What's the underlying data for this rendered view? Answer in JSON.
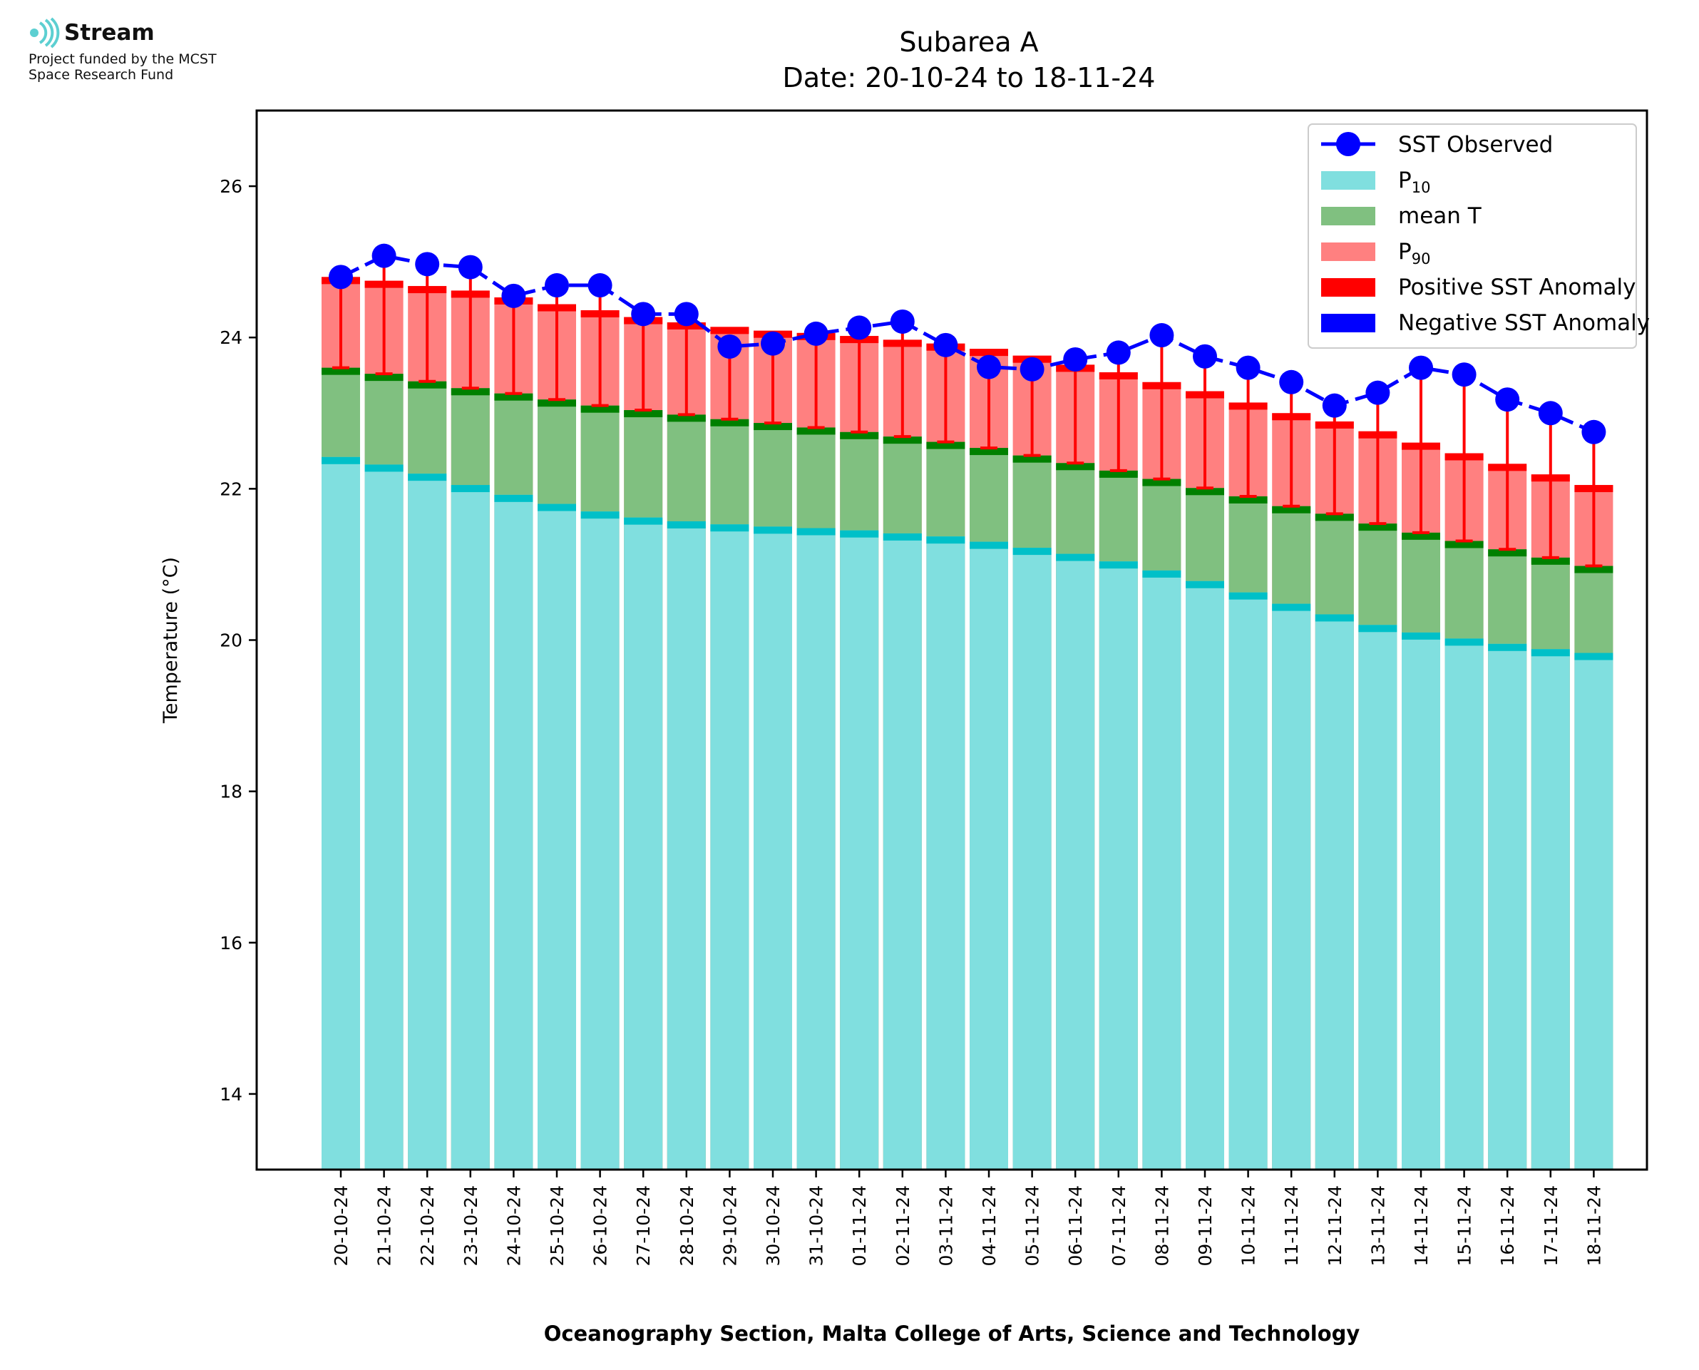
{
  "logo": {
    "brand": "Stream",
    "line1": "Project funded by the MCST",
    "line2": "Space Research Fund"
  },
  "chart_data": {
    "type": "bar",
    "title": "Subarea A",
    "subtitle": "Date: 20-10-24 to 18-11-24",
    "xlabel": "Oceanography Section, Malta College of Arts, Science and Technology",
    "ylabel": "Temperature (°C)",
    "ylim": [
      13,
      27
    ],
    "yticks": [
      14,
      16,
      18,
      20,
      22,
      24,
      26
    ],
    "grid": false,
    "legend_position": "top-right",
    "categories": [
      "20-10-24",
      "21-10-24",
      "22-10-24",
      "23-10-24",
      "24-10-24",
      "25-10-24",
      "26-10-24",
      "27-10-24",
      "28-10-24",
      "29-10-24",
      "30-10-24",
      "31-10-24",
      "01-11-24",
      "02-11-24",
      "03-11-24",
      "04-11-24",
      "05-11-24",
      "06-11-24",
      "07-11-24",
      "08-11-24",
      "09-11-24",
      "10-11-24",
      "11-11-24",
      "12-11-24",
      "13-11-24",
      "14-11-24",
      "15-11-24",
      "16-11-24",
      "17-11-24",
      "18-11-24"
    ],
    "series": [
      {
        "name": "SST Observed",
        "kind": "line",
        "color": "#0000ff",
        "values": [
          24.8,
          25.08,
          24.97,
          24.93,
          24.55,
          24.69,
          24.69,
          24.31,
          24.31,
          23.88,
          23.92,
          24.05,
          24.13,
          24.21,
          23.9,
          23.61,
          23.58,
          23.71,
          23.8,
          24.03,
          23.75,
          23.6,
          23.41,
          23.1,
          23.27,
          23.6,
          23.51,
          23.18,
          23.0,
          22.75
        ]
      },
      {
        "name": "P10",
        "kind": "bar",
        "color": "#80dfdf",
        "edge_color": "#00c0c8",
        "values": [
          22.42,
          22.32,
          22.2,
          22.05,
          21.92,
          21.8,
          21.7,
          21.62,
          21.57,
          21.53,
          21.5,
          21.48,
          21.45,
          21.41,
          21.37,
          21.3,
          21.22,
          21.14,
          21.04,
          20.92,
          20.78,
          20.63,
          20.48,
          20.34,
          20.2,
          20.1,
          20.02,
          19.95,
          19.88,
          19.83
        ]
      },
      {
        "name": "mean T",
        "kind": "bar",
        "color": "#80c080",
        "edge_color": "#008000",
        "values": [
          23.6,
          23.52,
          23.42,
          23.33,
          23.26,
          23.18,
          23.1,
          23.04,
          22.98,
          22.92,
          22.87,
          22.81,
          22.75,
          22.69,
          22.62,
          22.54,
          22.44,
          22.34,
          22.24,
          22.13,
          22.01,
          21.9,
          21.77,
          21.67,
          21.54,
          21.42,
          21.31,
          21.2,
          21.09,
          20.98
        ]
      },
      {
        "name": "P90",
        "kind": "bar",
        "color": "#ff8080",
        "edge_color": "#ff0000",
        "values": [
          24.8,
          24.75,
          24.68,
          24.62,
          24.53,
          24.44,
          24.36,
          24.27,
          24.2,
          24.14,
          24.09,
          24.06,
          24.02,
          23.97,
          23.92,
          23.85,
          23.76,
          23.64,
          23.54,
          23.41,
          23.29,
          23.14,
          23.0,
          22.89,
          22.76,
          22.61,
          22.47,
          22.33,
          22.19,
          22.05
        ]
      },
      {
        "name": "Positive SST Anomaly",
        "kind": "errorbar",
        "color": "#ff0000"
      },
      {
        "name": "Negative SST Anomaly",
        "kind": "errorbar",
        "color": "#0000ff"
      }
    ],
    "legend": [
      {
        "label": "SST Observed",
        "sub": "",
        "kind": "line",
        "color": "#0000ff"
      },
      {
        "label": "P",
        "sub": "10",
        "kind": "patch",
        "color": "#80dfdf"
      },
      {
        "label": "mean T",
        "sub": "",
        "kind": "patch",
        "color": "#80c080"
      },
      {
        "label": "P",
        "sub": "90",
        "kind": "patch",
        "color": "#ff8080"
      },
      {
        "label": "Positive SST Anomaly",
        "sub": "",
        "kind": "patch",
        "color": "#ff0000"
      },
      {
        "label": "Negative SST Anomaly",
        "sub": "",
        "kind": "patch",
        "color": "#0000ff"
      }
    ]
  }
}
